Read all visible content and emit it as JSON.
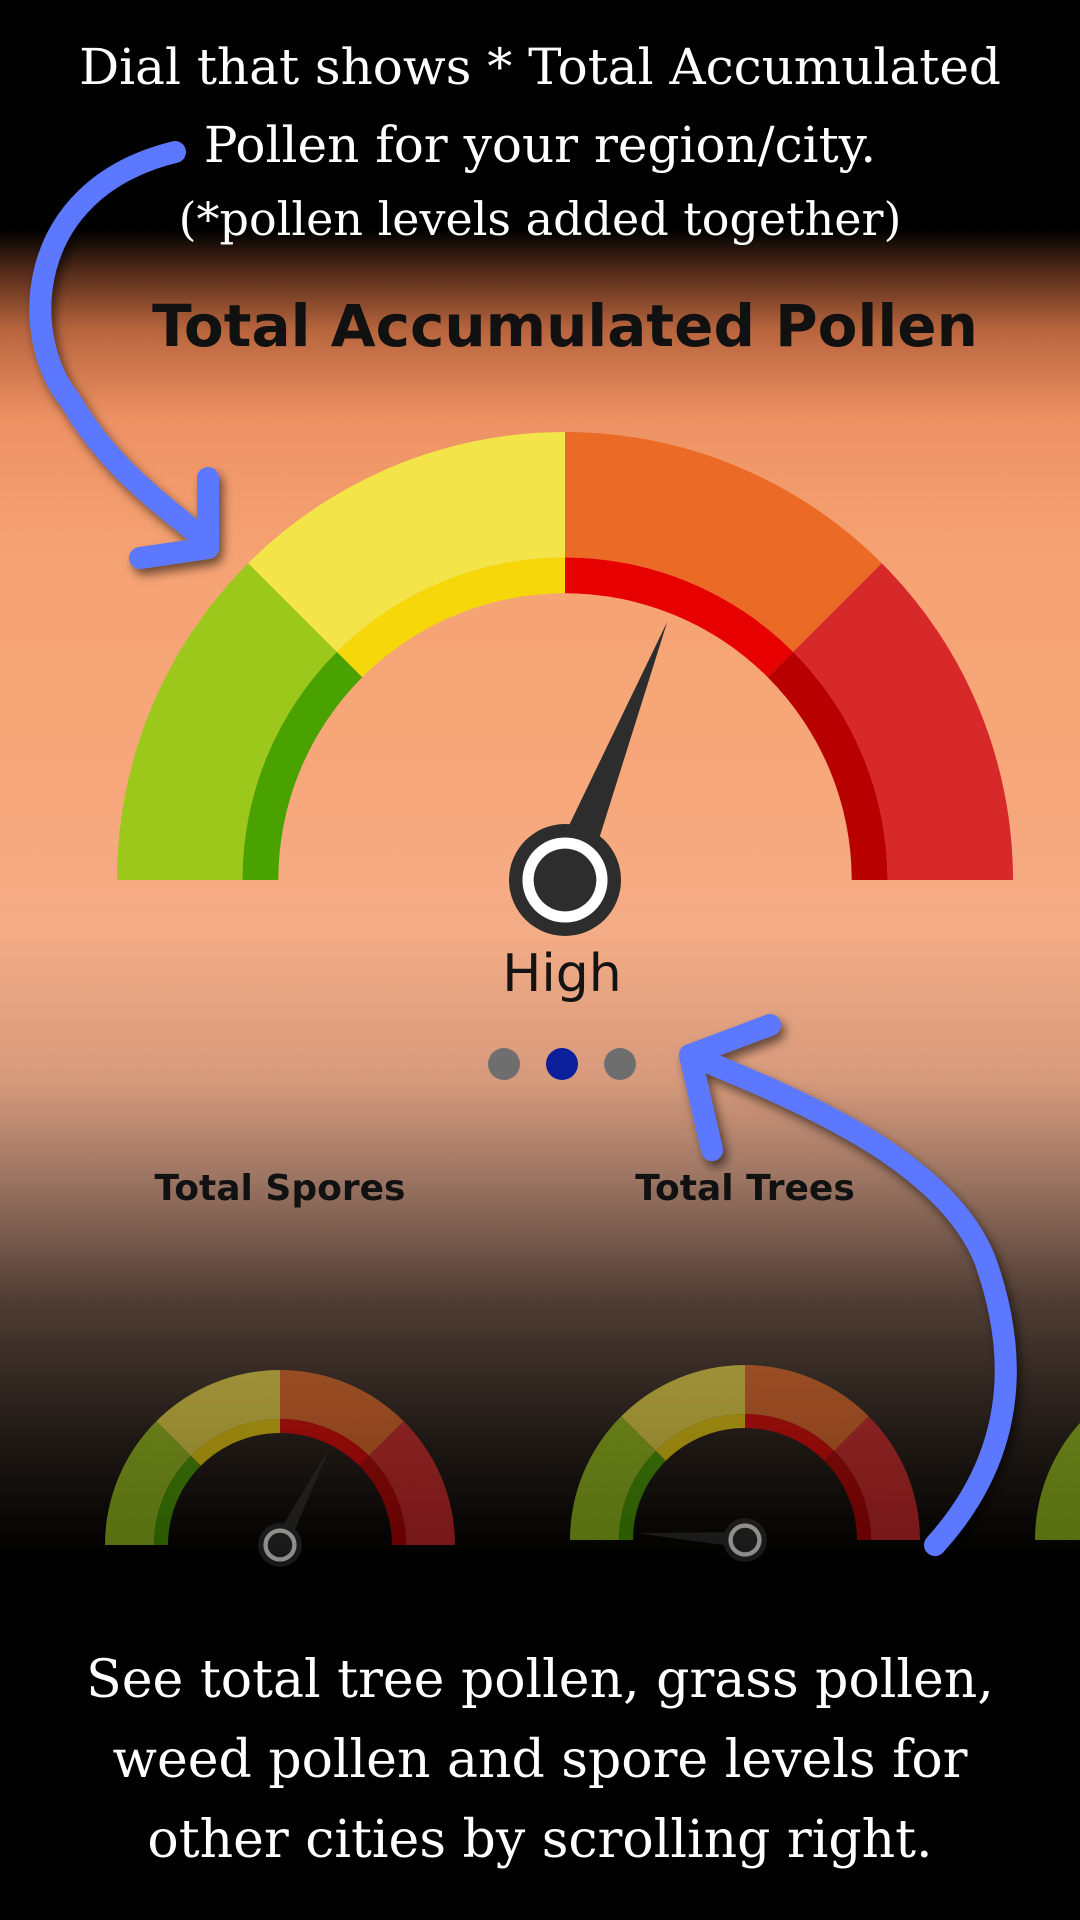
{
  "captions": {
    "top_line1": "Dial that shows * Total Accumulated",
    "top_line2": "Pollen for your region/city.",
    "top_line3": "(*pollen levels added together)",
    "bottom_line1": "See total tree pollen, grass pollen,",
    "bottom_line2": "weed pollen and spore levels for",
    "bottom_line3": "other cities by scrolling right."
  },
  "main_gauge": {
    "title": "Total Accumulated Pollen",
    "level_text": "High",
    "needle_fraction": 0.62
  },
  "pager": {
    "page_count": 3,
    "active_index": 1
  },
  "secondary_gauges": [
    {
      "title": "Total Spores",
      "needle_fraction": 0.65
    },
    {
      "title": "Total Trees",
      "needle_fraction": 0.02
    }
  ],
  "colors": {
    "green": "#9cc81b",
    "green_inner": "#4aa200",
    "yellow": "#f3e44a",
    "yellow_inner": "#f6d80a",
    "orange": "#ea6a26",
    "orange_inner": "#e60000",
    "red": "#d7282a",
    "red_inner": "#b80000",
    "needle": "#2d2d2d",
    "arrow": "#5b78ff",
    "dot_active": "#0b1f9a",
    "dot_inactive": "#6e6e6e"
  }
}
